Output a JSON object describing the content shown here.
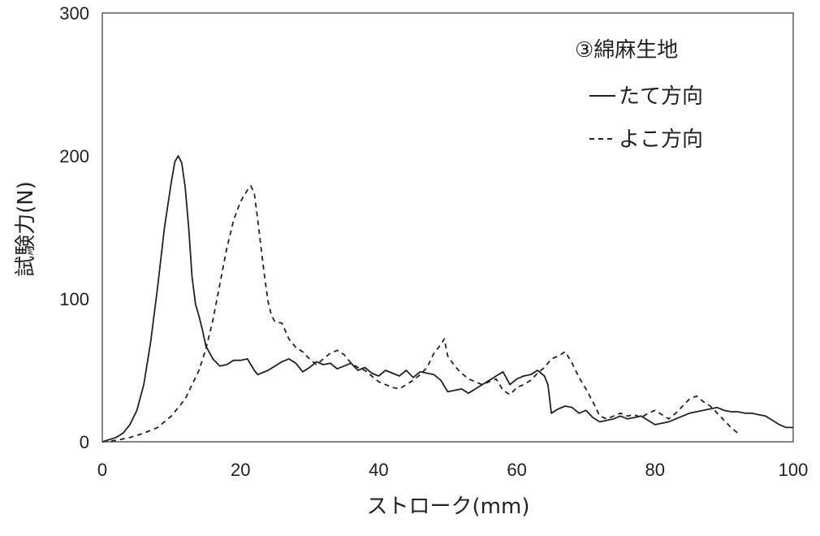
{
  "chart_data": {
    "type": "line",
    "title": "③綿麻生地",
    "xlabel": "ストローク(mm)",
    "ylabel": "試験力(N)",
    "xlim": [
      0,
      100
    ],
    "ylim": [
      0,
      300
    ],
    "xticks": [
      "0",
      "20",
      "40",
      "60",
      "80",
      "100"
    ],
    "yticks": [
      "0",
      "100",
      "200",
      "300"
    ],
    "grid": false,
    "legend_position": "top-right",
    "series": [
      {
        "name": "たて方向",
        "style": "solid",
        "color": "#222222",
        "x": [
          0,
          2,
          3,
          4,
          5,
          6,
          7,
          8,
          9,
          10,
          10.5,
          11,
          11.5,
          12,
          12.5,
          13,
          13.5,
          14,
          14.5,
          15,
          16,
          17,
          18,
          19,
          20,
          21,
          22,
          22.5,
          23,
          24,
          25,
          26,
          27,
          28,
          29,
          30,
          31,
          32,
          33,
          34,
          35,
          36,
          37,
          38,
          39,
          40,
          41,
          42,
          43,
          44,
          45,
          46,
          47,
          48,
          49,
          50,
          51,
          52,
          53,
          54,
          55,
          56,
          57,
          58,
          59,
          60,
          61,
          62,
          63,
          64,
          64.5,
          65,
          66,
          67,
          68,
          69,
          70,
          71,
          72,
          73,
          74,
          75,
          76,
          77,
          78,
          79,
          80,
          81,
          82,
          83,
          84,
          85,
          86,
          87,
          88,
          89,
          90,
          91,
          92,
          93,
          94,
          95,
          96,
          97,
          98,
          99,
          100
        ],
        "y": [
          0,
          3,
          6,
          12,
          22,
          40,
          70,
          108,
          150,
          182,
          196,
          200,
          195,
          178,
          150,
          115,
          96,
          88,
          78,
          67,
          58,
          53,
          54,
          57,
          57,
          58,
          50,
          47,
          48,
          50,
          53,
          56,
          58,
          55,
          49,
          52,
          56,
          54,
          55,
          51,
          53,
          55,
          50,
          52,
          48,
          46,
          50,
          48,
          46,
          50,
          45,
          49,
          48,
          47,
          43,
          35,
          36,
          37,
          34,
          37,
          40,
          43,
          46,
          49,
          40,
          44,
          46,
          47,
          50,
          46,
          40,
          20,
          23,
          25,
          24,
          20,
          22,
          17,
          14,
          15,
          16,
          18,
          16,
          17,
          18,
          15,
          12,
          13,
          14,
          16,
          18,
          20,
          21,
          22,
          23,
          24,
          22,
          21,
          21,
          20,
          20,
          19,
          18,
          15,
          12,
          10,
          10
        ]
      },
      {
        "name": "よこ方向",
        "style": "dashed",
        "color": "#222222",
        "x": [
          0,
          2,
          4,
          6,
          8,
          10,
          12,
          14,
          15,
          16,
          17,
          18,
          19,
          20,
          21,
          21.5,
          22,
          22.5,
          23,
          23.5,
          24,
          24.5,
          25,
          26,
          27,
          28,
          29,
          30,
          31,
          32,
          33,
          34,
          35,
          36,
          37,
          38,
          39,
          40,
          41,
          42,
          43,
          44,
          45,
          46,
          47,
          48,
          49,
          49.5,
          50,
          51,
          52,
          53,
          54,
          55,
          56,
          57,
          58,
          59,
          60,
          61,
          62,
          63,
          64,
          65,
          66,
          67,
          68,
          69,
          70,
          71,
          72,
          73,
          74,
          75,
          76,
          77,
          78,
          79,
          80,
          81,
          82,
          83,
          84,
          85,
          86,
          87,
          88,
          89,
          90,
          91,
          92
        ],
        "y": [
          0,
          1,
          3,
          6,
          10,
          18,
          30,
          50,
          65,
          85,
          110,
          135,
          155,
          168,
          176,
          179,
          174,
          155,
          135,
          115,
          98,
          88,
          84,
          83,
          72,
          66,
          63,
          58,
          54,
          58,
          62,
          64,
          61,
          55,
          52,
          50,
          46,
          42,
          40,
          38,
          37,
          40,
          43,
          47,
          52,
          62,
          68,
          72,
          60,
          53,
          48,
          44,
          42,
          40,
          42,
          44,
          36,
          33,
          38,
          40,
          43,
          48,
          52,
          58,
          60,
          63,
          55,
          45,
          37,
          28,
          18,
          16,
          18,
          20,
          18,
          19,
          17,
          20,
          22,
          19,
          16,
          20,
          25,
          30,
          32,
          28,
          25,
          20,
          15,
          10,
          6
        ]
      }
    ]
  }
}
